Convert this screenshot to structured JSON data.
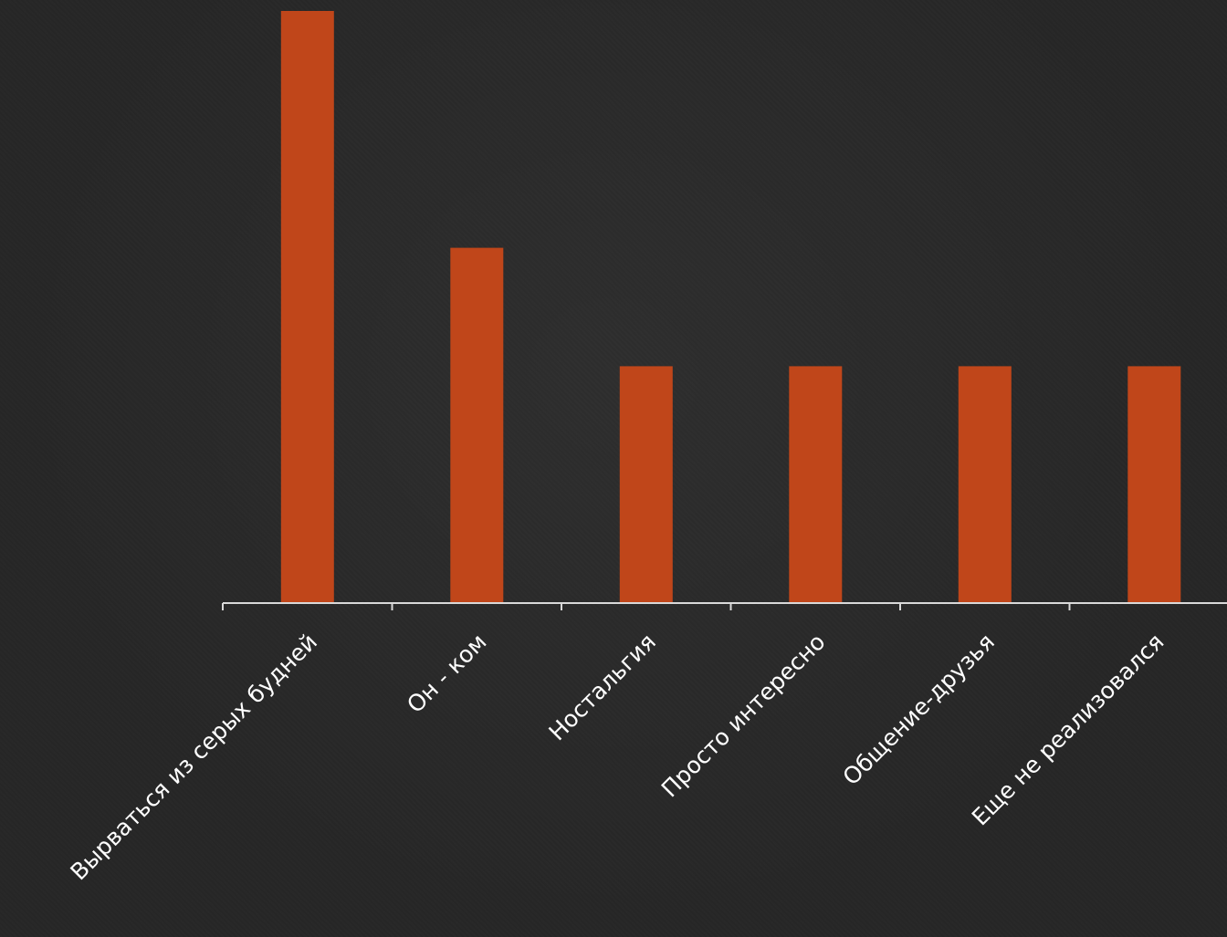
{
  "chart_data": {
    "type": "bar",
    "title": "",
    "xlabel": "",
    "ylabel": "",
    "categories": [
      "Вырваться из серых будней",
      "Он - ком",
      "Ностальгия",
      "Просто интересно",
      "Общение-друзья",
      "Еще не реализовался"
    ],
    "values": [
      5,
      3,
      2,
      2,
      2,
      2
    ],
    "ylim": [
      0,
      5
    ],
    "grid": false,
    "legend": "none",
    "colors": {
      "bar": "#C0461A",
      "axis": "#d9d9d9",
      "label": "#ffffff",
      "background": "#262626"
    }
  }
}
